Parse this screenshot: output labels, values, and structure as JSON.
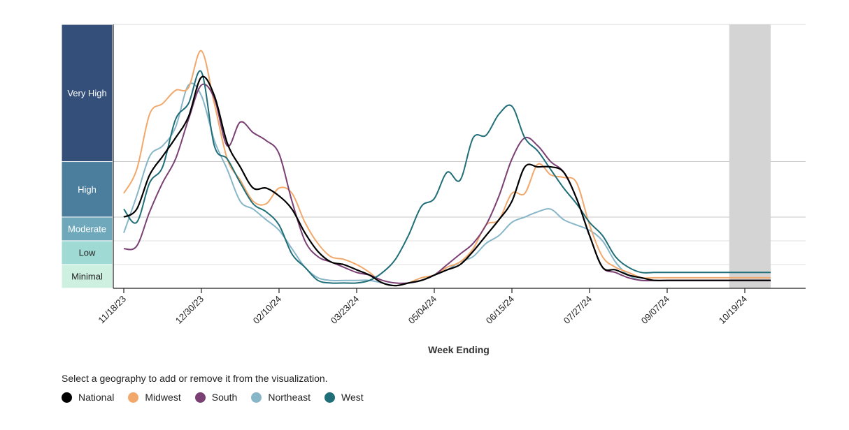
{
  "chart_data": {
    "type": "line",
    "xlabel": "Week Ending",
    "ylabel": "",
    "x_ticks": [
      "11/18/23",
      "12/30/23",
      "02/10/24",
      "03/23/24",
      "05/04/24",
      "06/15/24",
      "07/27/24",
      "09/07/24",
      "10/19/24"
    ],
    "levels": [
      {
        "name": "Very High",
        "upper": 100,
        "lower": 48,
        "color": "#34507a",
        "text_color": "#ffffff"
      },
      {
        "name": "High",
        "upper": 48,
        "lower": 27,
        "color": "#4a7e9c",
        "text_color": "#ffffff"
      },
      {
        "name": "Moderate",
        "upper": 27,
        "lower": 18,
        "color": "#6fa8bb",
        "text_color": "#ffffff"
      },
      {
        "name": "Low",
        "upper": 18,
        "lower": 9,
        "color": "#9fdad4",
        "text_color": "#222222"
      },
      {
        "name": "Minimal",
        "upper": 9,
        "lower": 0,
        "color": "#cdf0e0",
        "text_color": "#222222"
      }
    ],
    "ylim": [
      0,
      100
    ],
    "x_range_weeks": [
      0,
      50
    ],
    "provisional_weeks": [
      46.8,
      50
    ],
    "provisional_color": "#d4d4d4",
    "series": [
      {
        "name": "National",
        "color": "#000000",
        "x": [
          0,
          1,
          2,
          3,
          4,
          5,
          6,
          7,
          8,
          9,
          10,
          11,
          12,
          13,
          14,
          15,
          16,
          17,
          18,
          19,
          20,
          21,
          22,
          23,
          24,
          25,
          26,
          27,
          28,
          29,
          30,
          31,
          32,
          33,
          34,
          35,
          36,
          37,
          38,
          39,
          40,
          41,
          42,
          43,
          44,
          45,
          46,
          47,
          48,
          49,
          50
        ],
        "values": [
          27,
          30,
          43,
          50,
          57,
          65,
          80,
          73,
          55,
          46,
          38,
          38,
          35,
          30,
          21,
          14,
          10,
          9,
          7,
          5,
          2,
          1,
          2,
          3,
          5,
          7,
          9,
          14,
          20,
          26,
          33,
          46,
          46,
          46,
          44,
          34,
          20,
          8,
          7,
          5,
          4,
          3,
          3,
          3,
          3,
          3,
          3,
          3,
          3,
          3,
          3
        ]
      },
      {
        "name": "Midwest",
        "color": "#f2a86a",
        "x": [
          0,
          1,
          2,
          3,
          4,
          5,
          6,
          7,
          8,
          9,
          10,
          11,
          12,
          13,
          14,
          15,
          16,
          17,
          18,
          19,
          20,
          21,
          22,
          23,
          24,
          25,
          26,
          27,
          28,
          29,
          30,
          31,
          32,
          33,
          34,
          35,
          36,
          37,
          38,
          39,
          40,
          41,
          42,
          43,
          44,
          45,
          46,
          47,
          48,
          49,
          50
        ],
        "values": [
          36,
          45,
          66,
          70,
          75,
          76,
          90,
          70,
          49,
          41,
          33,
          32,
          38,
          36,
          25,
          17,
          12,
          11,
          9,
          6,
          2,
          1,
          2,
          4,
          5,
          8,
          10,
          15,
          24,
          26,
          36,
          36,
          47,
          43,
          42,
          40,
          24,
          12,
          8,
          6,
          4,
          4,
          4,
          4,
          4,
          4,
          4,
          4,
          4,
          4,
          4
        ]
      },
      {
        "name": "South",
        "color": "#7a3f73",
        "x": [
          0,
          1,
          2,
          3,
          4,
          5,
          6,
          7,
          8,
          9,
          10,
          11,
          12,
          13,
          14,
          15,
          16,
          17,
          18,
          19,
          20,
          21,
          22,
          23,
          24,
          25,
          26,
          27,
          28,
          29,
          30,
          31,
          32,
          33,
          34,
          35,
          36,
          37,
          38,
          39,
          40,
          41,
          42,
          43,
          44,
          45,
          46,
          47,
          48,
          49,
          50
        ],
        "values": [
          15,
          16,
          29,
          40,
          49,
          64,
          77,
          72,
          54,
          63,
          59,
          56,
          51,
          33,
          18,
          12,
          10,
          8,
          6,
          5,
          3,
          2,
          2,
          3,
          5,
          9,
          13,
          17,
          24,
          35,
          49,
          57,
          54,
          48,
          44,
          34,
          20,
          8,
          6,
          4,
          3,
          3,
          3,
          3,
          3,
          3,
          3,
          3,
          3,
          3,
          3
        ]
      },
      {
        "name": "Northeast",
        "color": "#87b6c8",
        "x": [
          0,
          1,
          2,
          3,
          4,
          5,
          6,
          7,
          8,
          9,
          10,
          11,
          12,
          13,
          14,
          15,
          16,
          17,
          18,
          19,
          20,
          21,
          22,
          23,
          24,
          25,
          26,
          27,
          28,
          29,
          30,
          31,
          32,
          33,
          34,
          35,
          36,
          37,
          38,
          39,
          40,
          41,
          42,
          43,
          44,
          45,
          46,
          47,
          48,
          49,
          50
        ],
        "values": [
          21,
          35,
          50,
          54,
          61,
          77,
          73,
          56,
          45,
          33,
          30,
          26,
          22,
          15,
          8,
          4,
          3,
          3,
          3,
          3,
          2,
          1,
          2,
          3,
          5,
          7,
          10,
          12,
          17,
          20,
          25,
          27,
          29,
          30,
          26,
          24,
          22,
          18,
          10,
          5,
          3,
          3,
          3,
          3,
          3,
          3,
          3,
          3,
          3,
          3,
          3
        ]
      },
      {
        "name": "West",
        "color": "#1f6e78",
        "x": [
          0,
          1,
          2,
          3,
          4,
          5,
          6,
          7,
          8,
          9,
          10,
          11,
          12,
          13,
          14,
          15,
          16,
          17,
          18,
          19,
          20,
          21,
          22,
          23,
          24,
          25,
          26,
          27,
          28,
          29,
          30,
          31,
          32,
          33,
          34,
          35,
          36,
          37,
          38,
          39,
          40,
          41,
          42,
          43,
          44,
          45,
          46,
          47,
          48,
          49,
          50
        ],
        "values": [
          30,
          25,
          40,
          46,
          64,
          70,
          82,
          54,
          49,
          40,
          32,
          29,
          24,
          13,
          8,
          3,
          2,
          2,
          2,
          3,
          6,
          11,
          20,
          31,
          34,
          44,
          41,
          57,
          58,
          66,
          69,
          57,
          52,
          45,
          38,
          32,
          25,
          20,
          12,
          8,
          6,
          6,
          6,
          6,
          6,
          6,
          6,
          6,
          6,
          6,
          6
        ]
      }
    ]
  },
  "instruction": "Select a geography to add or remove it from the visualization.",
  "legend": [
    {
      "label": "National",
      "color": "#000000"
    },
    {
      "label": "Midwest",
      "color": "#f2a86a"
    },
    {
      "label": "South",
      "color": "#7a3f73"
    },
    {
      "label": "Northeast",
      "color": "#87b6c8"
    },
    {
      "label": "West",
      "color": "#1f6e78"
    }
  ]
}
